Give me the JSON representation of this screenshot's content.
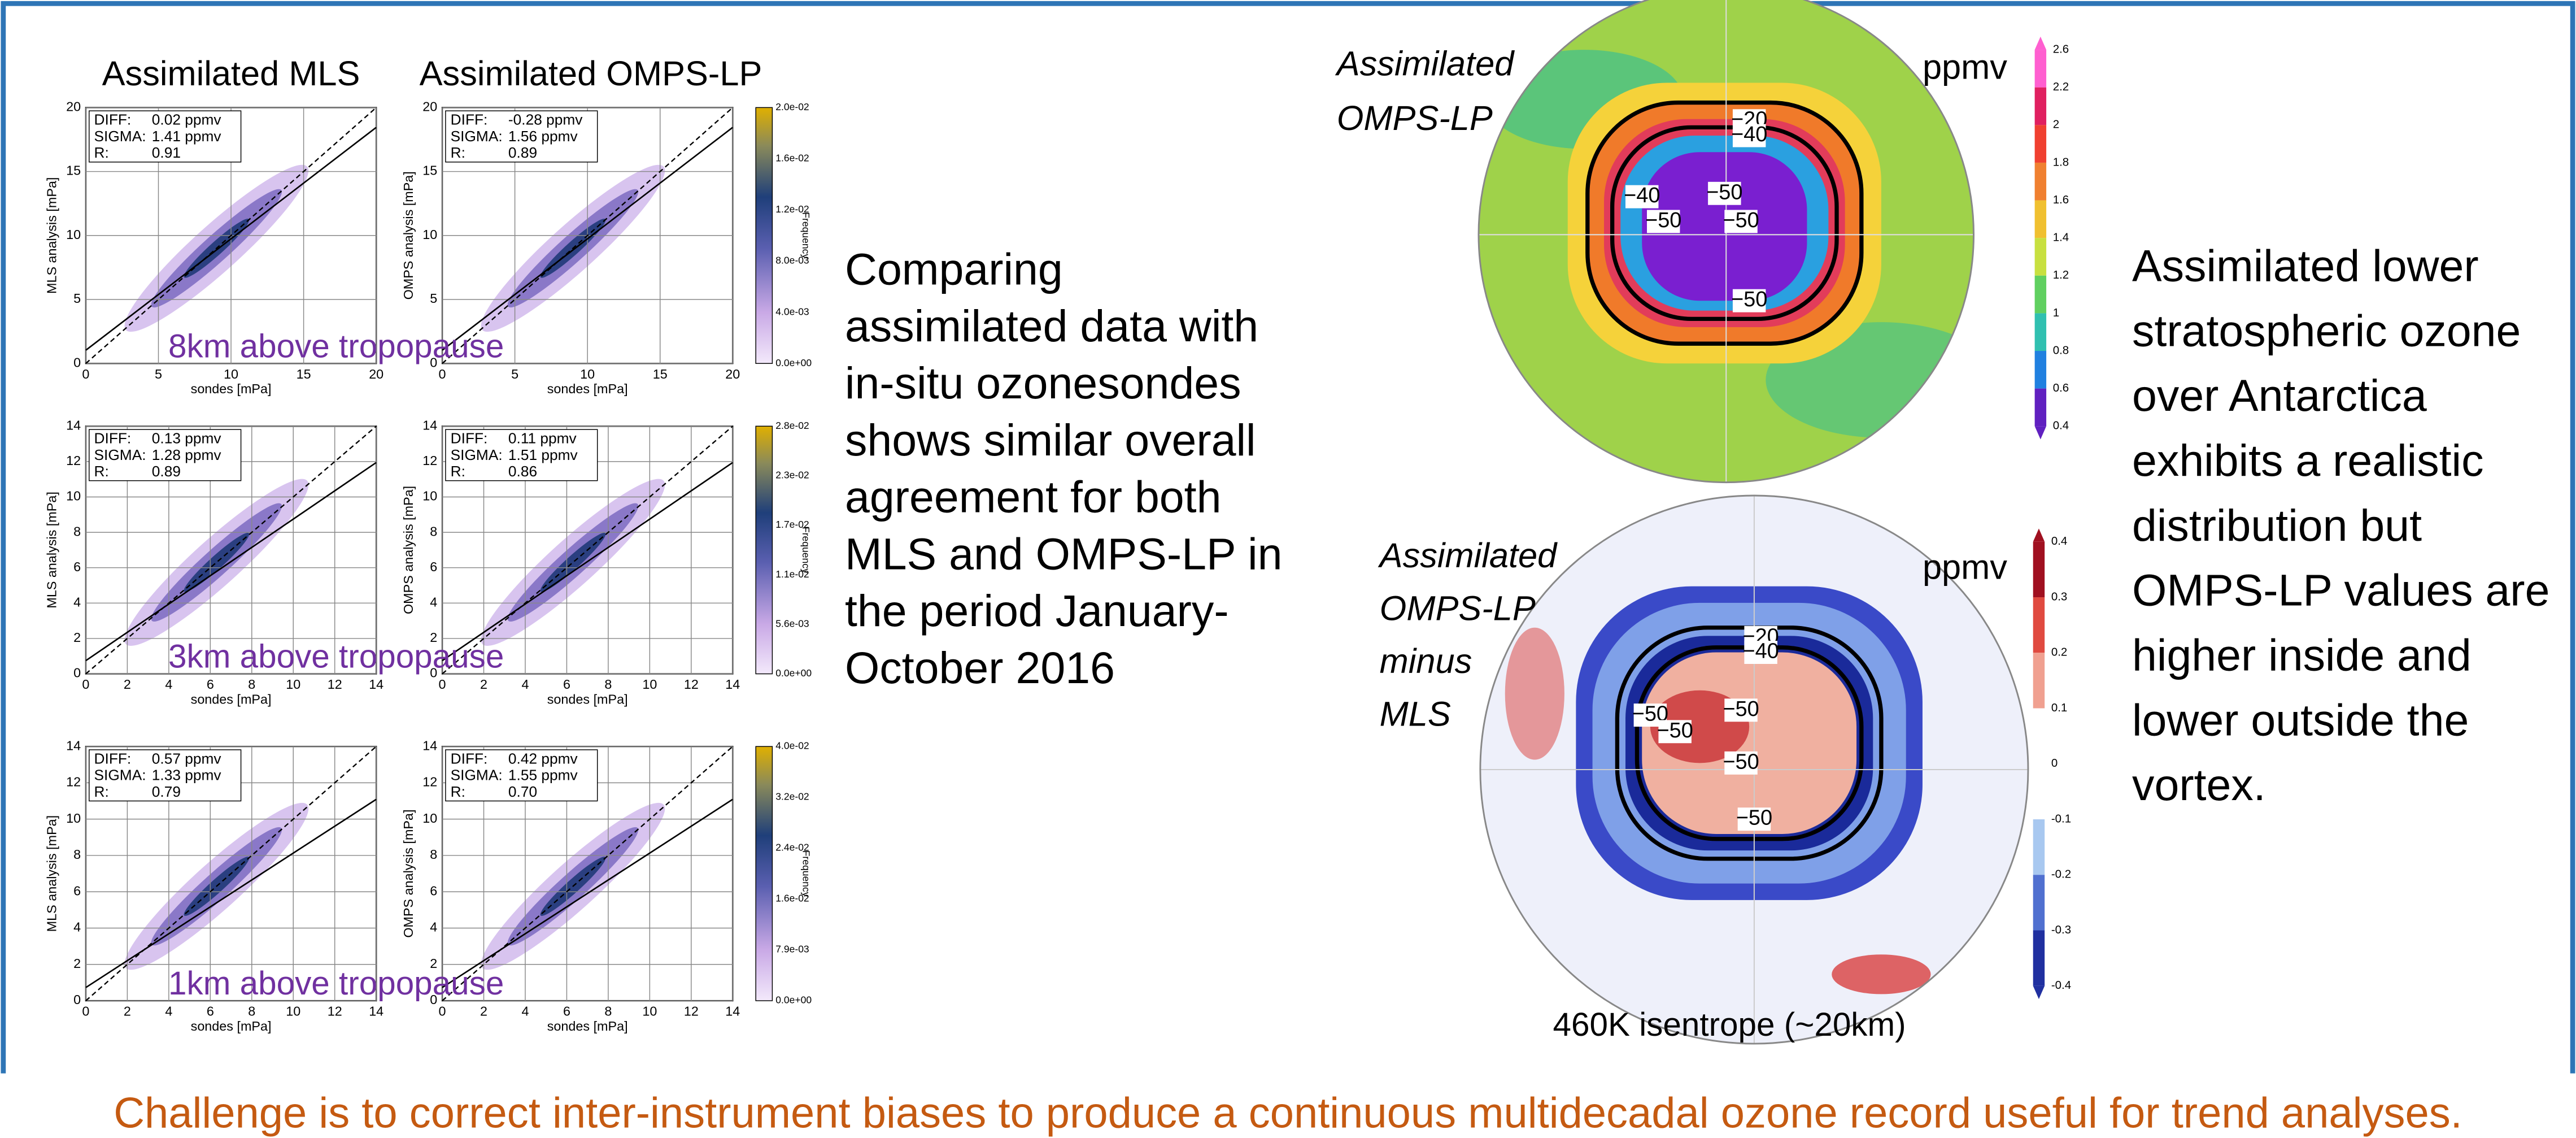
{
  "scatter": {
    "column_titles": [
      "Assimilated MLS",
      "Assimilated OMPS-LP"
    ],
    "x_label": "sondes [mPa]",
    "y_labels": [
      "MLS analysis [mPa]",
      "OMPS analysis [mPa]"
    ],
    "colorbar_label": "Frequency",
    "rows": [
      {
        "label": "8km above tropopause",
        "lim": [
          0,
          20
        ],
        "ticks": [
          0,
          5,
          10,
          15,
          20
        ],
        "colorbar_ticks": [
          "2.0e-02",
          "1.6e-02",
          "1.2e-02",
          "8.0e-03",
          "4.0e-03",
          "0.0e+00"
        ],
        "panels": [
          {
            "stats": [
              [
                "DIFF:",
                "0.02 ppmv"
              ],
              [
                "SIGMA:",
                "1.41 ppmv"
              ],
              [
                "R:",
                "0.91"
              ]
            ]
          },
          {
            "stats": [
              [
                "DIFF:",
                "-0.28 ppmv"
              ],
              [
                "SIGMA:",
                "1.56 ppmv"
              ],
              [
                "R:",
                "0.89"
              ]
            ]
          }
        ]
      },
      {
        "label": "3km above tropopause",
        "lim": [
          0,
          14
        ],
        "ticks": [
          0,
          2,
          4,
          6,
          8,
          10,
          12,
          14
        ],
        "colorbar_ticks": [
          "2.8e-02",
          "2.3e-02",
          "1.7e-02",
          "1.1e-02",
          "5.6e-03",
          "0.0e+00"
        ],
        "panels": [
          {
            "stats": [
              [
                "DIFF:",
                "0.13 ppmv"
              ],
              [
                "SIGMA:",
                "1.28 ppmv"
              ],
              [
                "R:",
                "0.89"
              ]
            ]
          },
          {
            "stats": [
              [
                "DIFF:",
                "0.11 ppmv"
              ],
              [
                "SIGMA:",
                "1.51 ppmv"
              ],
              [
                "R:",
                "0.86"
              ]
            ]
          }
        ]
      },
      {
        "label": "1km above tropopause",
        "lim": [
          0,
          14
        ],
        "ticks": [
          0,
          2,
          4,
          6,
          8,
          10,
          12,
          14
        ],
        "colorbar_ticks": [
          "4.0e-02",
          "3.2e-02",
          "2.4e-02",
          "1.6e-02",
          "7.9e-03",
          "0.0e+00"
        ],
        "panels": [
          {
            "stats": [
              [
                "DIFF:",
                "0.57 ppmv"
              ],
              [
                "SIGMA:",
                "1.33 ppmv"
              ],
              [
                "R:",
                "0.79"
              ]
            ]
          },
          {
            "stats": [
              [
                "DIFF:",
                "0.42 ppmv"
              ],
              [
                "SIGMA:",
                "1.55 ppmv"
              ],
              [
                "R:",
                "0.70"
              ]
            ]
          }
        ]
      }
    ]
  },
  "middle_text": [
    "Comparing",
    "assimilated data with",
    "in-situ ozonesondes",
    "shows similar overall",
    "agreement for both",
    "MLS and OMPS-LP in",
    "the period January-",
    "October 2016"
  ],
  "maps": [
    {
      "title_lines": [
        "Assimilated",
        "OMPS-LP"
      ],
      "unit": "ppmv",
      "colorbar_ticks": [
        2.6,
        2.2,
        2,
        1.8,
        1.6,
        1.4,
        1.2,
        1,
        0.8,
        0.6,
        0.4
      ],
      "contour_labels": [
        "−20",
        "−40",
        "−40",
        "−50",
        "−50",
        "−50",
        "−50"
      ]
    },
    {
      "title_lines": [
        "Assimilated",
        "OMPS-LP",
        "minus",
        "MLS"
      ],
      "unit": "ppmv",
      "colorbar_ticks": [
        0.4,
        0.3,
        0.2,
        0.1,
        0,
        -0.1,
        -0.2,
        -0.3,
        -0.4
      ],
      "contour_labels": [
        "−20",
        "−40",
        "−50",
        "−50",
        "−50",
        "−50",
        "−50"
      ]
    }
  ],
  "map_caption": "460K isentrope (~20km)",
  "right_text": [
    "Assimilated lower",
    "stratospheric ozone",
    "over Antarctica",
    "exhibits a realistic",
    "distribution but",
    "OMPS-LP values are",
    "higher inside and",
    "lower outside the",
    "vortex."
  ],
  "footer": "Challenge is to correct inter-instrument biases to produce a continuous multidecadal ozone record useful for trend analyses."
}
